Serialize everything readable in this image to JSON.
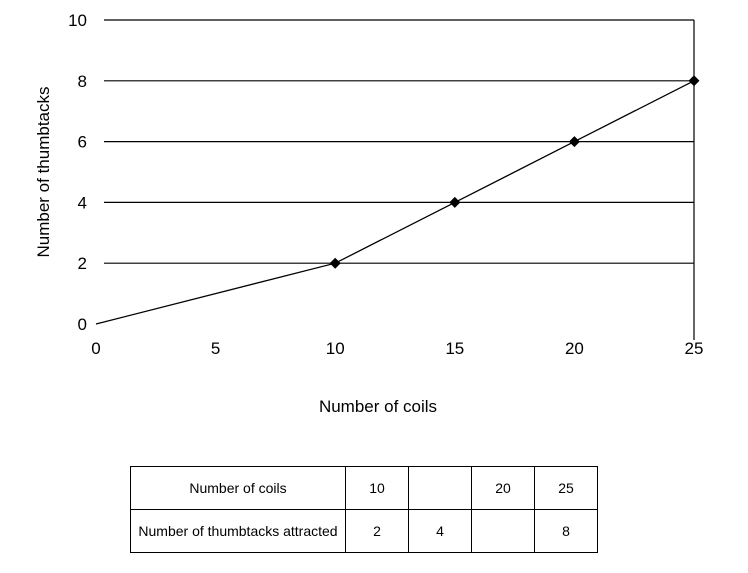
{
  "chart_data": {
    "type": "line",
    "xlabel": "Number of coils",
    "ylabel": "Number of thumbtacks",
    "xlim": [
      0,
      25
    ],
    "ylim": [
      0,
      10
    ],
    "x_ticks": [
      "0",
      "5",
      "10",
      "15",
      "20",
      "25"
    ],
    "y_ticks": [
      "0",
      "2",
      "4",
      "6",
      "8",
      "10"
    ],
    "grid": "horizontal",
    "series": [
      {
        "x": [
          0,
          10,
          15,
          20,
          25
        ],
        "y": [
          0,
          2,
          4,
          6,
          8
        ],
        "markers": [
          false,
          true,
          true,
          true,
          true
        ]
      }
    ]
  },
  "table": {
    "rows": [
      {
        "header": "Number of coils",
        "cells": [
          "10",
          "",
          "20",
          "25"
        ]
      },
      {
        "header": "Number of thumbtacks attracted",
        "cells": [
          "2",
          "4",
          "",
          "8"
        ]
      }
    ]
  }
}
